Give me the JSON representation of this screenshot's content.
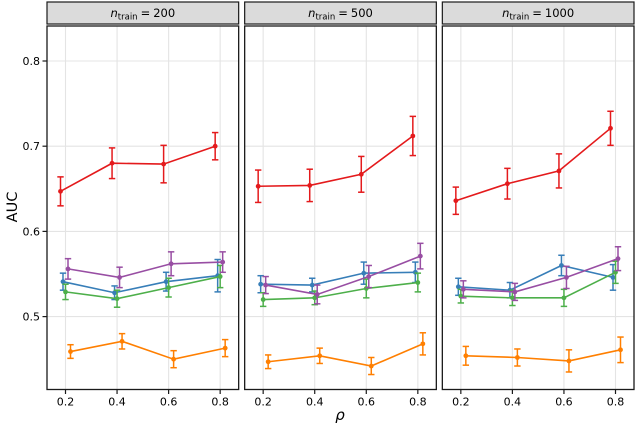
{
  "chart_data": {
    "type": "line",
    "title": "",
    "xlabel": "ρ",
    "ylabel": "AUC",
    "x": [
      0.2,
      0.4,
      0.6,
      0.8
    ],
    "x_tick_labels": [
      "0.2",
      "0.4",
      "0.6",
      "0.8"
    ],
    "y_ticks": [
      0.5,
      0.6,
      0.7,
      0.8
    ],
    "y_tick_labels": [
      "0.5",
      "0.6",
      "0.7",
      "0.8"
    ],
    "ylim": [
      0.414,
      0.841
    ],
    "grid": "major-only",
    "legend_position": "none",
    "error_bars": true,
    "colors": {
      "red": "#E41A1C",
      "blue": "#377EB8",
      "green": "#4DAF4A",
      "purple": "#984EA3",
      "orange": "#FF7F00",
      "grid": "#E4E4E4",
      "strip_fill": "#DBDBDB",
      "panel_border": "#1A1A1A",
      "text": "#000000"
    },
    "facets": [
      {
        "label": "n_train = 200",
        "strip": {
          "var": "n",
          "sub": "train",
          "eq": "=",
          "value": "200"
        },
        "series": [
          {
            "name": "red",
            "color": "#E41A1C",
            "values": [
              0.647,
              0.68,
              0.679,
              0.7
            ],
            "errors": [
              0.017,
              0.018,
              0.022,
              0.016
            ]
          },
          {
            "name": "blue",
            "color": "#377EB8",
            "values": [
              0.541,
              0.528,
              0.541,
              0.548
            ],
            "errors": [
              0.01,
              0.008,
              0.011,
              0.019
            ]
          },
          {
            "name": "green",
            "color": "#4DAF4A",
            "values": [
              0.529,
              0.521,
              0.534,
              0.547
            ],
            "errors": [
              0.009,
              0.01,
              0.011,
              0.013
            ]
          },
          {
            "name": "purple",
            "color": "#984EA3",
            "values": [
              0.556,
              0.546,
              0.562,
              0.564
            ],
            "errors": [
              0.012,
              0.012,
              0.014,
              0.012
            ]
          },
          {
            "name": "orange",
            "color": "#FF7F00",
            "values": [
              0.459,
              0.471,
              0.45,
              0.463
            ],
            "errors": [
              0.008,
              0.009,
              0.01,
              0.01
            ]
          }
        ]
      },
      {
        "label": "n_train = 500",
        "strip": {
          "var": "n",
          "sub": "train",
          "eq": "=",
          "value": "500"
        },
        "series": [
          {
            "name": "red",
            "color": "#E41A1C",
            "values": [
              0.653,
              0.654,
              0.667,
              0.712
            ],
            "errors": [
              0.019,
              0.019,
              0.021,
              0.023
            ]
          },
          {
            "name": "blue",
            "color": "#377EB8",
            "values": [
              0.538,
              0.537,
              0.551,
              0.552
            ],
            "errors": [
              0.01,
              0.008,
              0.013,
              0.012
            ]
          },
          {
            "name": "green",
            "color": "#4DAF4A",
            "values": [
              0.52,
              0.522,
              0.533,
              0.54
            ],
            "errors": [
              0.008,
              0.008,
              0.011,
              0.011
            ]
          },
          {
            "name": "purple",
            "color": "#984EA3",
            "values": [
              0.537,
              0.526,
              0.547,
              0.571
            ],
            "errors": [
              0.01,
              0.011,
              0.013,
              0.015
            ]
          },
          {
            "name": "orange",
            "color": "#FF7F00",
            "values": [
              0.447,
              0.454,
              0.442,
              0.468
            ],
            "errors": [
              0.008,
              0.009,
              0.01,
              0.013
            ]
          }
        ]
      },
      {
        "label": "n_train = 1000",
        "strip": {
          "var": "n",
          "sub": "train",
          "eq": "=",
          "value": "1000"
        },
        "series": [
          {
            "name": "red",
            "color": "#E41A1C",
            "values": [
              0.636,
              0.656,
              0.671,
              0.721
            ],
            "errors": [
              0.016,
              0.018,
              0.02,
              0.02
            ]
          },
          {
            "name": "blue",
            "color": "#377EB8",
            "values": [
              0.535,
              0.531,
              0.56,
              0.546
            ],
            "errors": [
              0.01,
              0.009,
              0.012,
              0.015
            ]
          },
          {
            "name": "green",
            "color": "#4DAF4A",
            "values": [
              0.524,
              0.522,
              0.522,
              0.552
            ],
            "errors": [
              0.008,
              0.009,
              0.01,
              0.013
            ]
          },
          {
            "name": "purple",
            "color": "#984EA3",
            "values": [
              0.532,
              0.529,
              0.546,
              0.568
            ],
            "errors": [
              0.01,
              0.01,
              0.013,
              0.014
            ]
          },
          {
            "name": "orange",
            "color": "#FF7F00",
            "values": [
              0.454,
              0.452,
              0.448,
              0.461
            ],
            "errors": [
              0.011,
              0.01,
              0.013,
              0.015
            ]
          }
        ]
      }
    ]
  }
}
